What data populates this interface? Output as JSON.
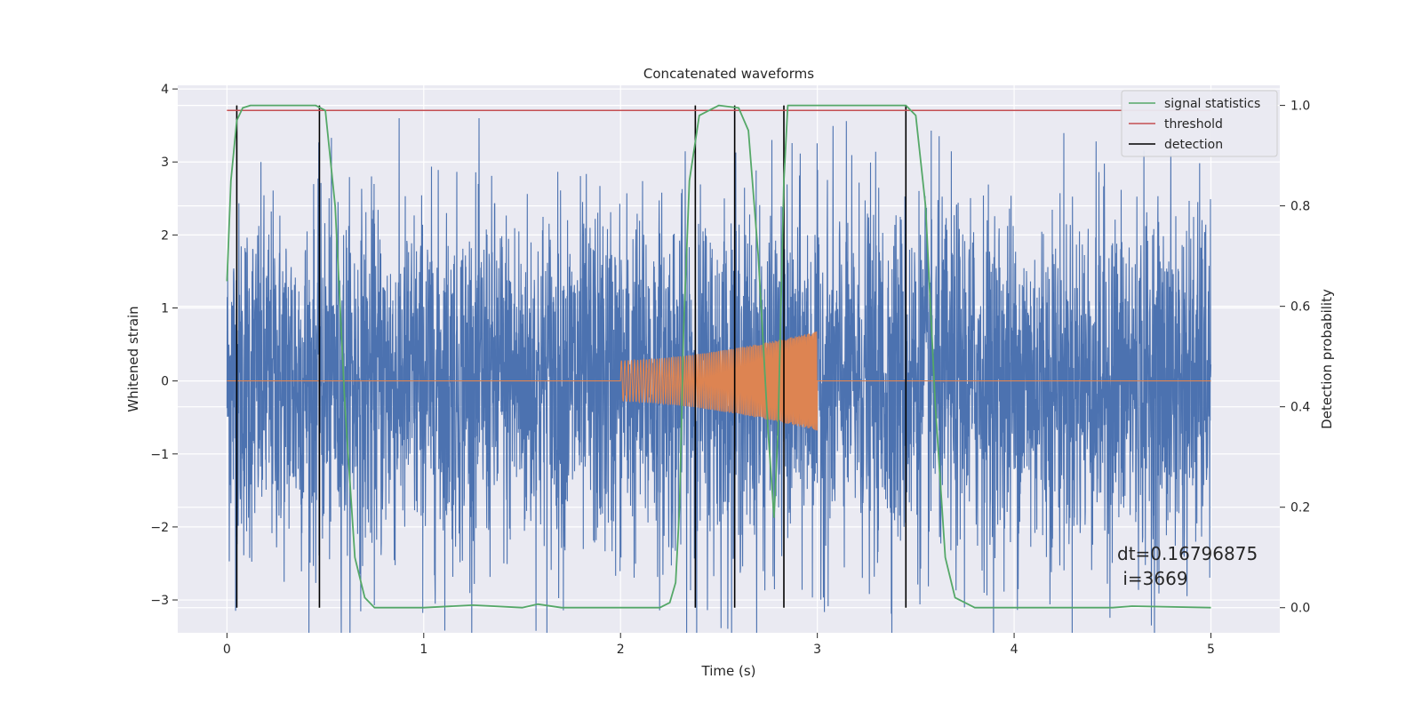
{
  "chart_data": {
    "type": "line",
    "title": "Concatenated waveforms",
    "xlabel": "Time (s)",
    "ylabel": "Whitened strain",
    "y2label": "Detection probability",
    "xlim": [
      -0.25,
      5.35
    ],
    "ylim": [
      -3.45,
      4.05
    ],
    "y2lim": [
      -0.05,
      1.04
    ],
    "x_ticks": [
      0,
      1,
      2,
      3,
      4,
      5
    ],
    "y_ticks": [
      -3,
      -2,
      -1,
      0,
      1,
      2,
      3,
      4
    ],
    "y2_ticks": [
      0.0,
      0.2,
      0.4,
      0.6,
      0.8,
      1.0
    ],
    "x_tick_labels": [
      "0",
      "1",
      "2",
      "3",
      "4",
      "5"
    ],
    "y_tick_labels": [
      "−3",
      "−2",
      "−1",
      "0",
      "1",
      "2",
      "3",
      "4"
    ],
    "y2_tick_labels": [
      "0.0",
      "0.2",
      "0.4",
      "0.6",
      "0.8",
      "1.0"
    ],
    "grid": true,
    "legend_position": "top-right",
    "series": [
      {
        "name": "",
        "kind": "noise",
        "axis": "left",
        "x_range": [
          0,
          5
        ],
        "typical_amplitude": 1.2,
        "peak_amplitude": 3.6,
        "color": "#4c72b0"
      },
      {
        "name": "",
        "kind": "chirp",
        "axis": "left",
        "x_range": [
          0,
          5
        ],
        "chirp_x_range": [
          2.0,
          3.0
        ],
        "amplitude_start": 0.28,
        "amplitude_end": 0.68,
        "color": "#dd8452"
      },
      {
        "name": "signal statistics",
        "axis": "right",
        "color": "#55a868",
        "x": [
          0,
          0.02,
          0.05,
          0.08,
          0.12,
          0.45,
          0.5,
          0.55,
          0.6,
          0.65,
          0.7,
          0.75,
          1.0,
          1.25,
          1.5,
          1.58,
          1.7,
          2.0,
          2.2,
          2.25,
          2.28,
          2.3,
          2.32,
          2.35,
          2.4,
          2.5,
          2.6,
          2.65,
          2.7,
          2.75,
          2.78,
          2.8,
          2.83,
          2.85,
          3.45,
          3.5,
          3.55,
          3.6,
          3.65,
          3.7,
          3.8,
          4.0,
          4.5,
          4.6,
          5.0
        ],
        "y": [
          0.65,
          0.85,
          0.97,
          0.995,
          1.0,
          1.0,
          0.99,
          0.8,
          0.4,
          0.1,
          0.02,
          0.0,
          0.0,
          0.005,
          0.0,
          0.007,
          0.0,
          0.0,
          0.0,
          0.01,
          0.05,
          0.2,
          0.55,
          0.85,
          0.98,
          1.0,
          0.995,
          0.95,
          0.7,
          0.35,
          0.18,
          0.35,
          0.85,
          1.0,
          1.0,
          0.98,
          0.8,
          0.4,
          0.1,
          0.02,
          0.0,
          0.0,
          0.0,
          0.003,
          0.0
        ]
      },
      {
        "name": "threshold",
        "axis": "right",
        "color": "#c44e52",
        "x": [
          0,
          5
        ],
        "y": [
          0.99,
          0.99
        ]
      },
      {
        "name": "detection",
        "axis": "right",
        "color": "#000000",
        "vlines_x": [
          0.05,
          0.47,
          2.38,
          2.58,
          2.83,
          3.45
        ],
        "vline_y": [
          0.0,
          1.0
        ]
      }
    ],
    "annotations": [
      {
        "id": "dt",
        "text": "dt=0.16796875"
      },
      {
        "id": "i",
        "text": " i=3669"
      }
    ]
  }
}
